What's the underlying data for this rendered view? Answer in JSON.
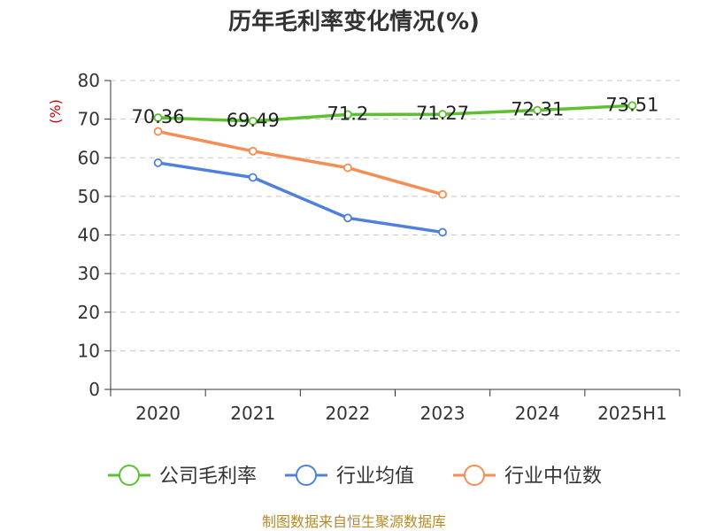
{
  "chart_data": {
    "type": "line",
    "title": "历年毛利率变化情况(%)",
    "ylabel": "(%)",
    "ylim": [
      0,
      80
    ],
    "yticks": [
      0,
      10,
      20,
      30,
      40,
      50,
      60,
      70,
      80
    ],
    "categories": [
      "2020",
      "2021",
      "2022",
      "2023",
      "2024",
      "2025H1"
    ],
    "grid": true,
    "legend_position": "bottom",
    "series": [
      {
        "name": "公司毛利率",
        "color": "#5cc130",
        "values": [
          70.36,
          69.49,
          71.2,
          71.27,
          72.31,
          73.51
        ],
        "labels": [
          "70.36",
          "69.49",
          "71.2",
          "71.27",
          "72.31",
          "73.51"
        ]
      },
      {
        "name": "行业均值",
        "color": "#4f81d9",
        "values": [
          58.7,
          54.9,
          44.4,
          40.7,
          null,
          null
        ]
      },
      {
        "name": "行业中位数",
        "color": "#f68d55",
        "values": [
          66.8,
          61.7,
          57.4,
          50.5,
          null,
          null
        ]
      }
    ]
  },
  "source": "制图数据来自恒生聚源数据库"
}
